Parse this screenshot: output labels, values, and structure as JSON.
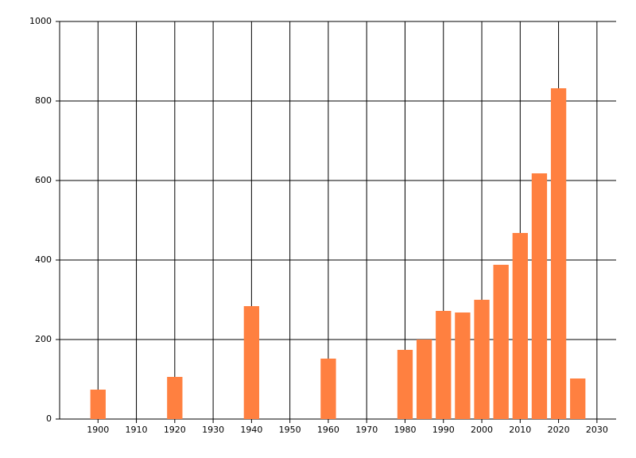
{
  "chart_data": {
    "type": "bar",
    "x": [
      1900,
      1920,
      1940,
      1960,
      1980,
      1985,
      1990,
      1995,
      2000,
      2005,
      2010,
      2015,
      2020,
      2025
    ],
    "values": [
      74,
      106,
      284,
      152,
      174,
      200,
      272,
      268,
      300,
      388,
      468,
      618,
      832,
      102
    ],
    "color": "#ff8040",
    "xlim": [
      1890,
      2035
    ],
    "xticks": [
      1900,
      1910,
      1920,
      1930,
      1940,
      1950,
      1960,
      1970,
      1980,
      1990,
      2000,
      2010,
      2020,
      2030
    ],
    "ylim": [
      0,
      1000
    ],
    "yticks": [
      0,
      200,
      400,
      600,
      800,
      1000
    ],
    "grid": true
  }
}
